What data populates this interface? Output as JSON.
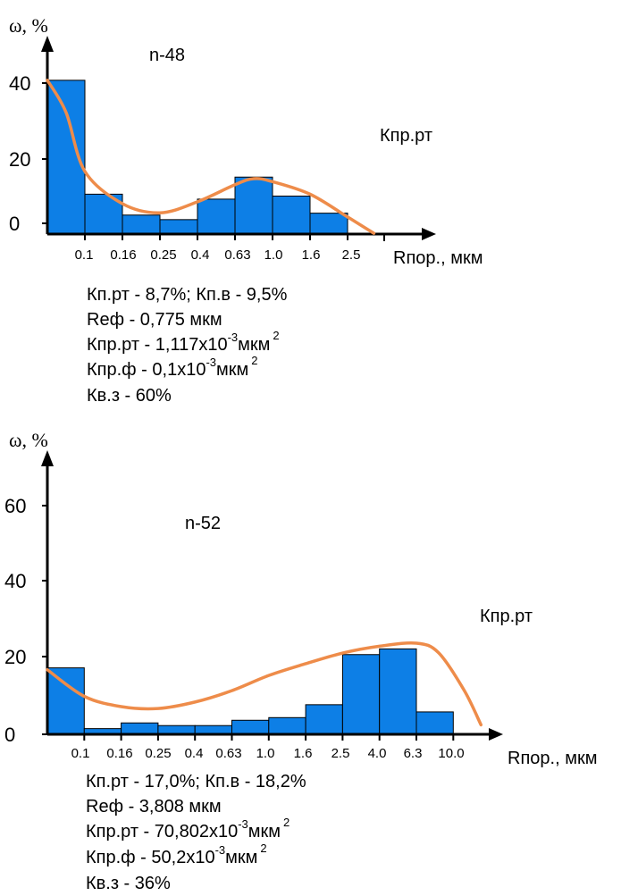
{
  "chart_data": [
    {
      "type": "bar",
      "title": "n-48",
      "ylabel": "ω, %",
      "xlabel": "Rпор., мкм",
      "annotation": "Кпр.рт",
      "y_ticks": [
        "40",
        "20",
        "0"
      ],
      "ylim": [
        0,
        40
      ],
      "x_ticks": [
        "0.1",
        "0.16",
        "0.25",
        "0.4",
        "0.63",
        "1.0",
        "1.6",
        "2.5"
      ],
      "values": [
        40.5,
        10.5,
        5.0,
        3.8,
        9.2,
        15.0,
        10.0,
        5.5
      ],
      "curve": [
        [
          0.0,
          40.5
        ],
        [
          0.5,
          32.0
        ],
        [
          1.0,
          16.5
        ],
        [
          2.0,
          8.0
        ],
        [
          3.0,
          5.6
        ],
        [
          4.0,
          8.5
        ],
        [
          5.0,
          13.0
        ],
        [
          5.5,
          14.6
        ],
        [
          6.0,
          13.8
        ],
        [
          7.0,
          10.5
        ],
        [
          8.0,
          4.5
        ],
        [
          8.7,
          0.2
        ]
      ],
      "colors": {
        "bar": "#0d7fe6",
        "curve": "#ee8c4a"
      },
      "info": [
        {
          "text": "Кп.рт - 8,7%; Кп.в - 9,5%"
        },
        {
          "text": "Rеф - 0,775 мкм"
        },
        {
          "text": "Кпр.рт - 1,117х10",
          "sup": "-3",
          "text2": "мкм",
          "sup2": "2"
        },
        {
          "text": "Кпр.ф - 0,1х10",
          "sup": "-3",
          "text2": "мкм",
          "sup2": "2"
        },
        {
          "text": "Кв.з - 60%"
        }
      ]
    },
    {
      "type": "bar",
      "title": "n-52",
      "ylabel": "ω, %",
      "xlabel": "Rпор., мкм",
      "annotation": "Кпр.рт",
      "y_ticks": [
        "60",
        "40",
        "20",
        "0"
      ],
      "ylim": [
        0,
        60
      ],
      "x_ticks": [
        "0.1",
        "0.16",
        "0.25",
        "0.4",
        "0.63",
        "1.0",
        "1.6",
        "2.5",
        "4.0",
        "6.3",
        "10.0"
      ],
      "values": [
        17.5,
        1.5,
        3.0,
        2.3,
        2.3,
        3.7,
        4.4,
        7.8,
        21.0,
        22.5,
        5.9
      ],
      "curve": [
        [
          0.0,
          17.0
        ],
        [
          1.0,
          10.0
        ],
        [
          2.0,
          7.3
        ],
        [
          3.0,
          6.8
        ],
        [
          4.0,
          8.5
        ],
        [
          5.0,
          11.5
        ],
        [
          6.0,
          15.5
        ],
        [
          7.0,
          18.6
        ],
        [
          8.0,
          21.4
        ],
        [
          9.0,
          23.2
        ],
        [
          10.0,
          24.0
        ],
        [
          10.6,
          21.5
        ],
        [
          11.3,
          11.5
        ],
        [
          11.75,
          2.5
        ]
      ],
      "colors": {
        "bar": "#0d7fe6",
        "curve": "#ee8c4a"
      },
      "info": [
        {
          "text": "Кп.рт - 17,0%; Кп.в - 18,2%"
        },
        {
          "text": "Rеф - 3,808 мкм"
        },
        {
          "text": "Кпр.рт - 70,802х10",
          "sup": "-3",
          "text2": "мкм",
          "sup2": "2"
        },
        {
          "text": "Кпр.ф - 50,2х10",
          "sup": "-3",
          "text2": "мкм",
          "sup2": "2"
        },
        {
          "text": "Кв.з - 36%"
        }
      ]
    }
  ]
}
